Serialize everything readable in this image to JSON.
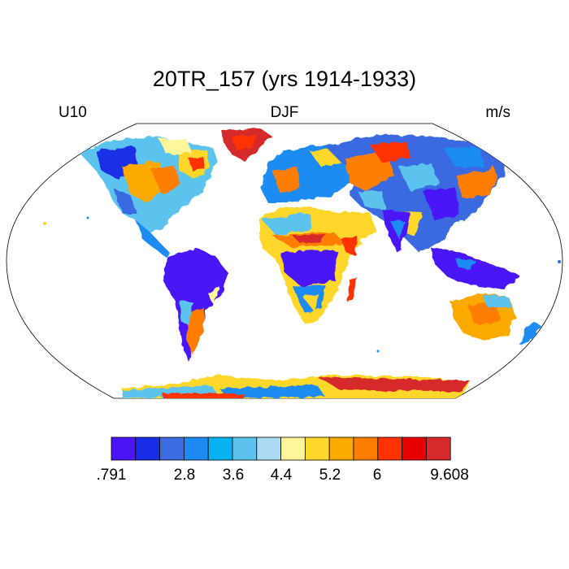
{
  "title": "20TR_157 (yrs 1914-1933)",
  "left_string": "U10",
  "center_string": "DJF",
  "right_string": "m/s",
  "projection": "Robinson",
  "colorbar": {
    "colors": [
      "#4a14f7",
      "#1a2de6",
      "#3a6be0",
      "#1e8bf2",
      "#08b2f2",
      "#5cc3ef",
      "#acdaf2",
      "#fff59a",
      "#ffd72a",
      "#fcaa00",
      "#ff7d00",
      "#ff3300",
      "#e60000",
      "#d62a2a"
    ],
    "labels": [
      {
        "text": ".791",
        "boundary": 0
      },
      {
        "text": "2.8",
        "boundary": 2
      },
      {
        "text": "3.6",
        "boundary": 3
      },
      {
        "text": "4.4",
        "boundary": 4
      },
      {
        "text": "5.2",
        "boundary": 5
      },
      {
        "text": "6",
        "boundary": 6
      },
      {
        "text": "9.608",
        "boundary": 7
      }
    ]
  }
}
